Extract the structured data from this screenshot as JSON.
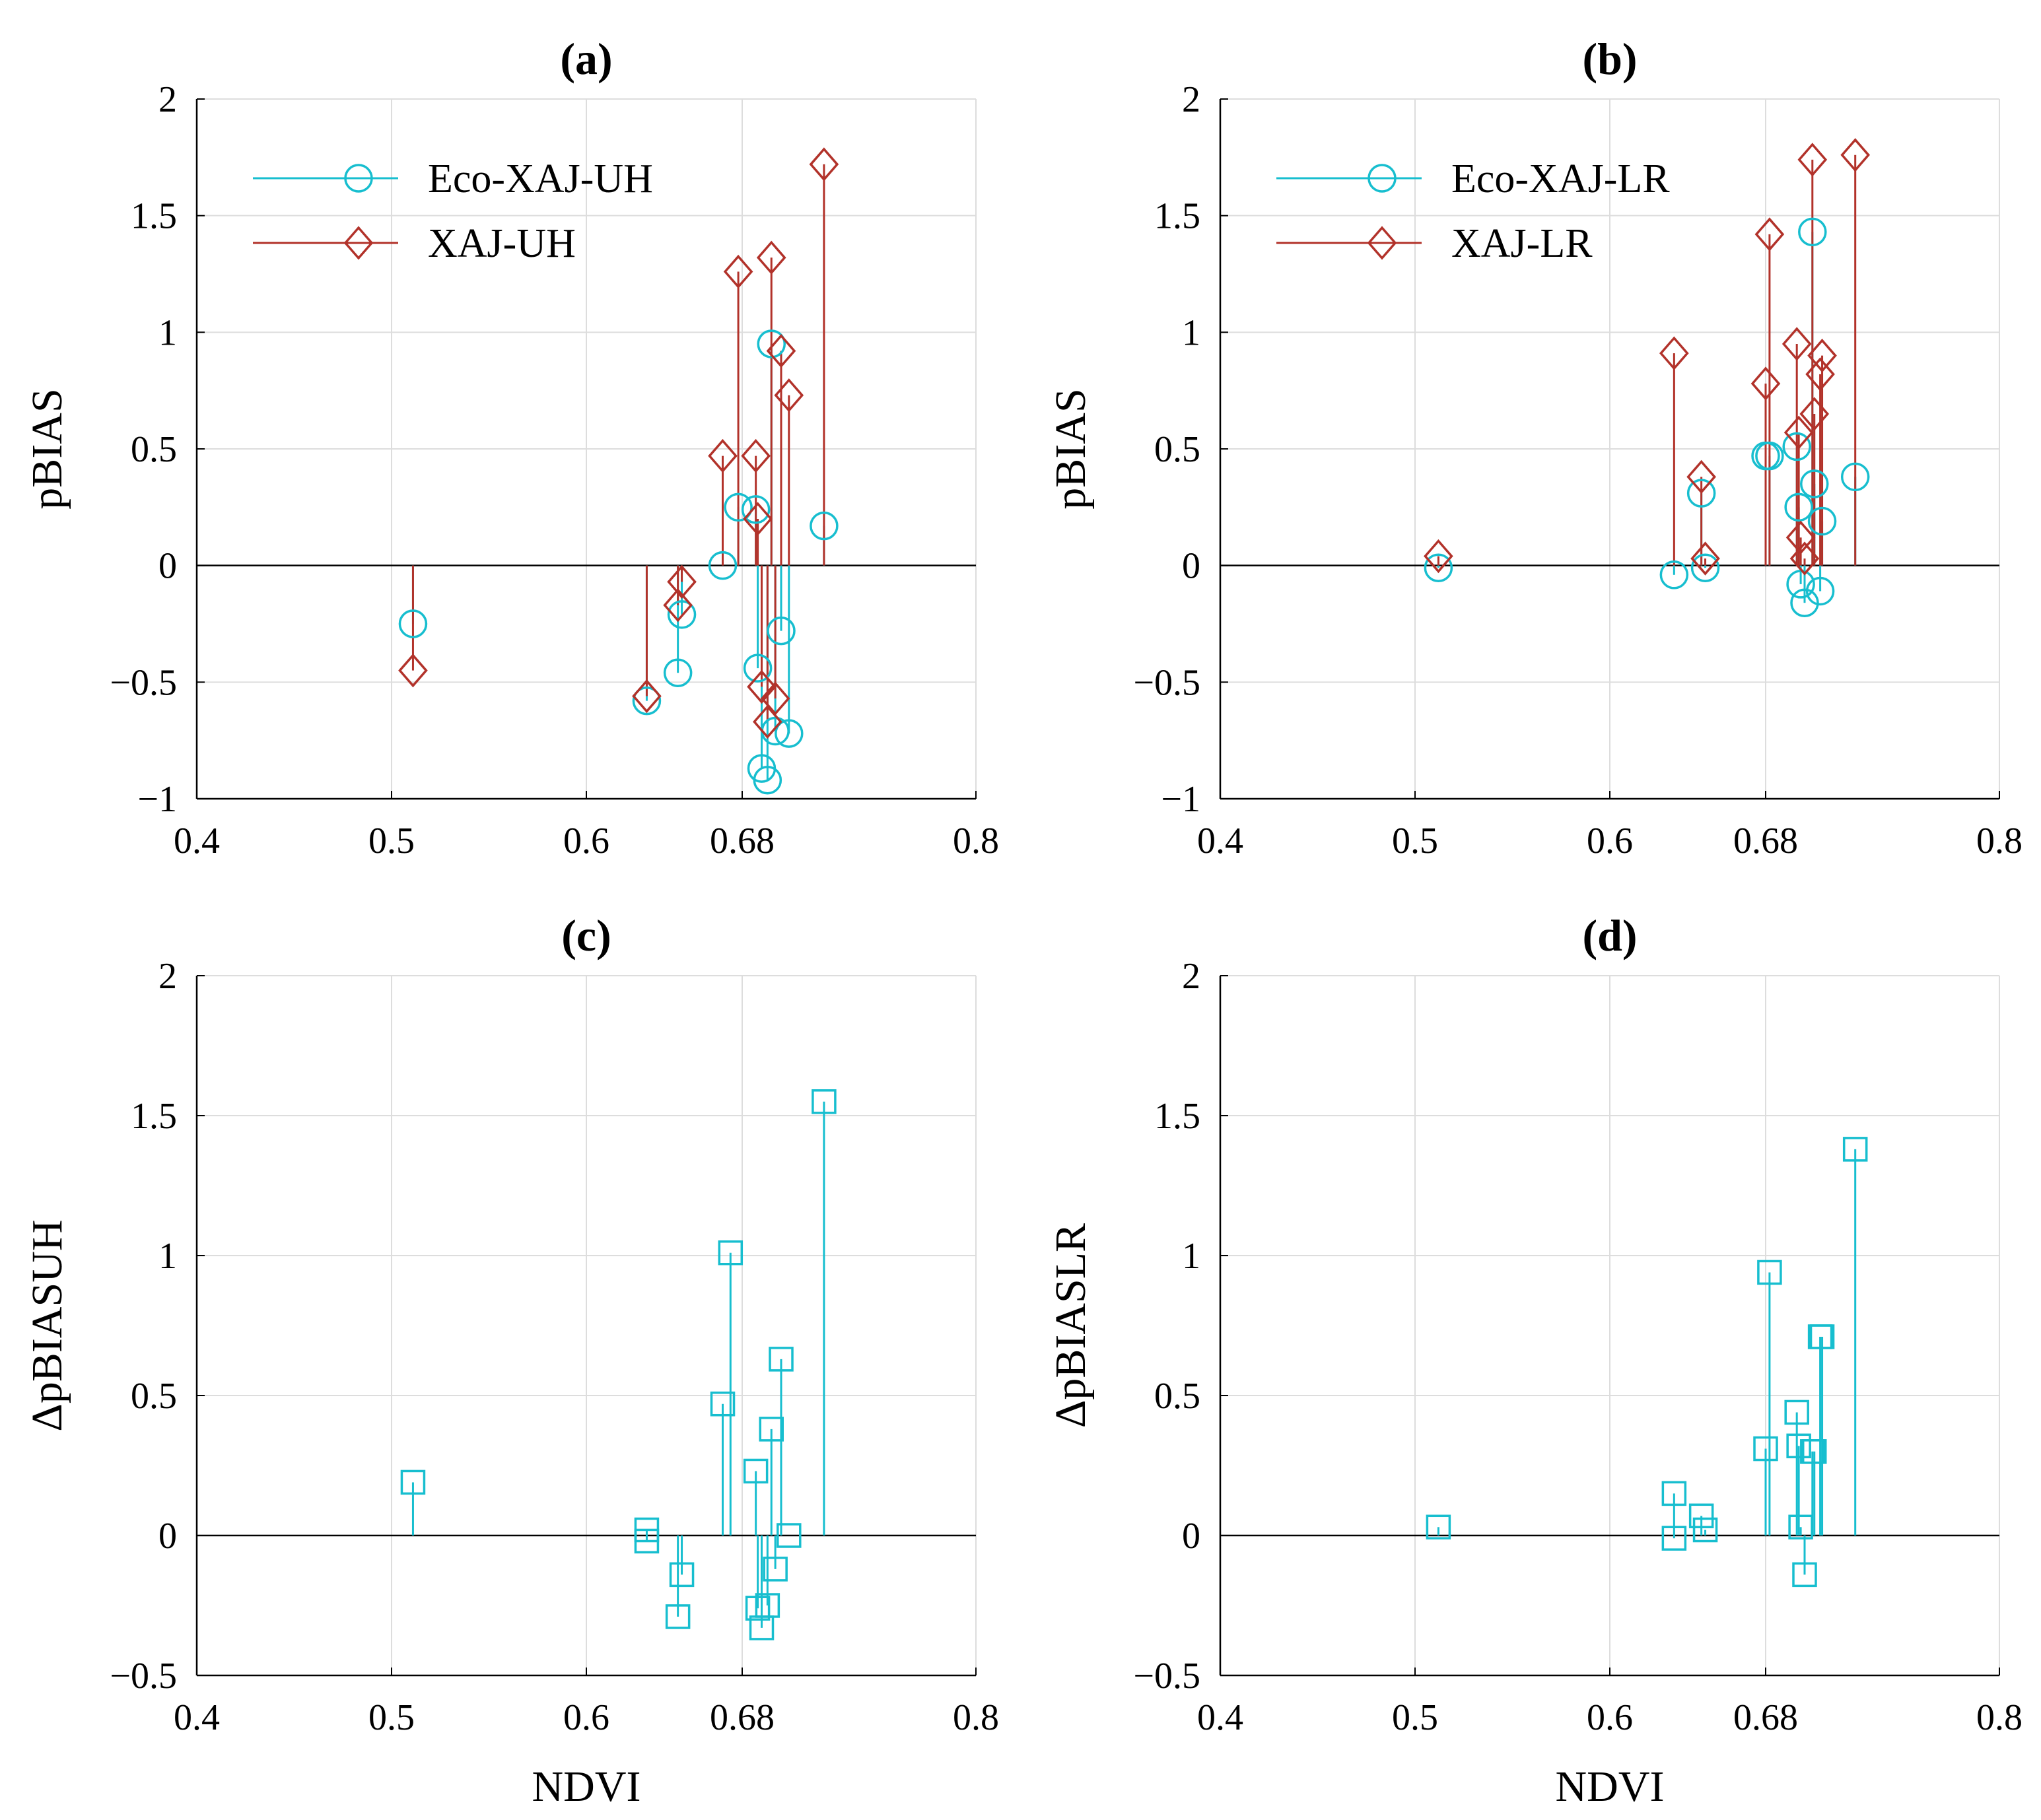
{
  "colors": {
    "eco": "#17becf",
    "xaj": "#b2322a",
    "axis": "#000000",
    "grid": "#dddddd"
  },
  "chart_data": [
    {
      "id": "a",
      "type": "stem",
      "title": "(a)",
      "xlabel": "",
      "ylabel": "pBIAS",
      "xlim": [
        0.4,
        0.8
      ],
      "ylim": [
        -1,
        2
      ],
      "xticks": [
        "0.4",
        "0.5",
        "0.6",
        "0.68",
        "0.8"
      ],
      "yticks": [
        "−1",
        "−0.5",
        "0",
        "0.5",
        "1",
        "1.5",
        "2"
      ],
      "legend_position": "top-left",
      "series": [
        {
          "name": "Eco-XAJ-UH",
          "marker": "circle",
          "color_key": "eco",
          "x": [
            0.511,
            0.631,
            0.647,
            0.649,
            0.67,
            0.678,
            0.687,
            0.688,
            0.69,
            0.693,
            0.695,
            0.697,
            0.7,
            0.704,
            0.722
          ],
          "y": [
            -0.25,
            -0.58,
            -0.46,
            -0.21,
            0.0,
            0.25,
            0.24,
            -0.44,
            -0.87,
            -0.92,
            0.95,
            -0.71,
            -0.28,
            -0.72,
            0.17
          ]
        },
        {
          "name": "XAJ-UH",
          "marker": "diamond",
          "color_key": "xaj",
          "x": [
            0.511,
            0.631,
            0.647,
            0.649,
            0.67,
            0.678,
            0.687,
            0.688,
            0.69,
            0.693,
            0.695,
            0.697,
            0.7,
            0.704,
            0.722
          ],
          "y": [
            -0.45,
            -0.56,
            -0.17,
            -0.07,
            0.47,
            1.26,
            0.47,
            0.2,
            -0.52,
            -0.67,
            1.32,
            -0.57,
            0.92,
            0.73,
            1.72
          ]
        }
      ]
    },
    {
      "id": "b",
      "type": "stem",
      "title": "(b)",
      "xlabel": "",
      "ylabel": "pBIAS",
      "xlim": [
        0.4,
        0.8
      ],
      "ylim": [
        -1,
        2
      ],
      "xticks": [
        "0.4",
        "0.5",
        "0.6",
        "0.68",
        "0.8"
      ],
      "yticks": [
        "−1",
        "−0.5",
        "0",
        "0.5",
        "1",
        "1.5",
        "2"
      ],
      "legend_position": "top-left",
      "series": [
        {
          "name": "Eco-XAJ-LR",
          "marker": "circle",
          "color_key": "eco",
          "x": [
            0.512,
            0.633,
            0.647,
            0.649,
            0.68,
            0.682,
            0.696,
            0.697,
            0.698,
            0.7,
            0.704,
            0.705,
            0.708,
            0.709,
            0.726
          ],
          "y": [
            -0.01,
            -0.04,
            0.31,
            -0.01,
            0.47,
            0.47,
            0.51,
            0.25,
            -0.08,
            -0.16,
            1.43,
            0.35,
            -0.11,
            0.19,
            0.38
          ]
        },
        {
          "name": "XAJ-LR",
          "marker": "diamond",
          "color_key": "xaj",
          "x": [
            0.512,
            0.633,
            0.647,
            0.649,
            0.68,
            0.682,
            0.696,
            0.697,
            0.698,
            0.7,
            0.704,
            0.705,
            0.708,
            0.709,
            0.726
          ],
          "y": [
            0.04,
            0.91,
            0.38,
            0.03,
            0.78,
            1.42,
            0.95,
            0.57,
            0.12,
            0.03,
            1.74,
            0.65,
            0.82,
            0.9,
            1.76
          ]
        }
      ]
    },
    {
      "id": "c",
      "type": "stem",
      "title": "(c)",
      "xlabel": "NDVI",
      "ylabel": "ΔpBIASUH",
      "xlim": [
        0.4,
        0.8
      ],
      "ylim": [
        -0.5,
        2
      ],
      "xticks": [
        "0.4",
        "0.5",
        "0.6",
        "0.68",
        "0.8"
      ],
      "yticks": [
        "−0.5",
        "0",
        "0.5",
        "1",
        "1.5",
        "2"
      ],
      "series": [
        {
          "name": "ΔpBIASUH",
          "marker": "square",
          "color_key": "eco",
          "x": [
            0.511,
            0.631,
            0.631,
            0.647,
            0.649,
            0.67,
            0.674,
            0.687,
            0.688,
            0.69,
            0.693,
            0.695,
            0.697,
            0.7,
            0.704,
            0.722
          ],
          "y": [
            0.19,
            0.02,
            -0.02,
            -0.29,
            -0.14,
            0.47,
            1.01,
            0.23,
            -0.26,
            -0.33,
            -0.25,
            0.38,
            -0.12,
            0.63,
            0.0,
            1.55
          ]
        }
      ]
    },
    {
      "id": "d",
      "type": "stem",
      "title": "(d)",
      "xlabel": "NDVI",
      "ylabel": "ΔpBIASLR",
      "xlim": [
        0.4,
        0.8
      ],
      "ylim": [
        -0.5,
        2
      ],
      "xticks": [
        "0.4",
        "0.5",
        "0.6",
        "0.68",
        "0.8"
      ],
      "yticks": [
        "−0.5",
        "0",
        "0.5",
        "1",
        "1.5",
        "2"
      ],
      "series": [
        {
          "name": "ΔpBIASLR",
          "marker": "square",
          "color_key": "eco",
          "x": [
            0.512,
            0.633,
            0.633,
            0.647,
            0.649,
            0.68,
            0.682,
            0.696,
            0.697,
            0.698,
            0.7,
            0.704,
            0.705,
            0.708,
            0.709,
            0.726
          ],
          "y": [
            0.03,
            0.15,
            -0.01,
            0.07,
            0.02,
            0.31,
            0.94,
            0.44,
            0.32,
            0.03,
            -0.14,
            0.3,
            0.3,
            0.71,
            0.71,
            1.38
          ]
        }
      ]
    }
  ]
}
